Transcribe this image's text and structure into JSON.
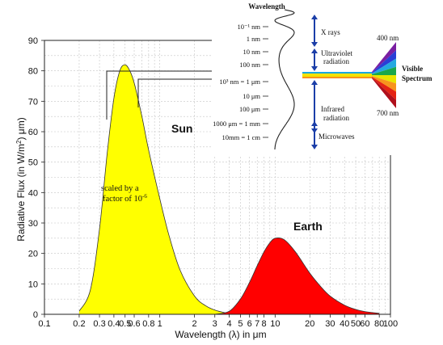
{
  "chart_data": {
    "type": "area",
    "xscale": "log",
    "xlim": [
      0.1,
      100
    ],
    "ylim": [
      0,
      90
    ],
    "grid": true,
    "xlabel": "Wavelength (λ) in μm",
    "ylabel_parts": [
      "Radiative Flux (in W/m",
      "2",
      ") μm)"
    ],
    "x_ticks": [
      "0.1",
      "0.2",
      "0.3",
      "0.4",
      "0.5",
      "0.6",
      "0.8",
      "1",
      "2",
      "3",
      "4",
      "5",
      "6",
      "7",
      "8",
      "10",
      "20",
      "30",
      "40",
      "50",
      "60",
      "80",
      "100"
    ],
    "y_ticks": [
      "0",
      "10",
      "20",
      "30",
      "40",
      "50",
      "60",
      "70",
      "80",
      "90"
    ],
    "series": [
      {
        "name": "Sun",
        "color": "#ffff00",
        "x": [
          0.2,
          0.25,
          0.3,
          0.35,
          0.4,
          0.45,
          0.5,
          0.55,
          0.6,
          0.7,
          0.8,
          1.0,
          1.2,
          1.5,
          2.0,
          2.5,
          3.0,
          3.5,
          4.0
        ],
        "y": [
          1.0,
          8.0,
          28.0,
          53.0,
          71.0,
          80.0,
          82.0,
          80.0,
          76.0,
          65.0,
          54.0,
          38.0,
          26.0,
          14.5,
          6.0,
          2.8,
          1.4,
          0.7,
          0.2
        ]
      },
      {
        "name": "Earth",
        "color": "#ff0000",
        "x": [
          3.0,
          4.0,
          5.0,
          6.0,
          7.0,
          8.0,
          9.0,
          10.0,
          12.0,
          15.0,
          20.0,
          25.0,
          30.0,
          40.0,
          50.0,
          60.0,
          80.0
        ],
        "y": [
          0.0,
          1.0,
          5.0,
          10.5,
          16.0,
          20.5,
          23.5,
          25.0,
          24.5,
          20.5,
          13.5,
          9.0,
          6.0,
          3.0,
          1.6,
          0.9,
          0.3
        ]
      }
    ],
    "annotations": {
      "sun_label": "Sun",
      "earth_label": "Earth",
      "scale_note_line1": "scaled by a",
      "scale_note_line2": "factor of 10",
      "scale_note_exp": "-6"
    }
  },
  "spectrum_inset": {
    "title": "Wavelength",
    "scale_labels": [
      "10⁻¹ nm",
      "1 nm",
      "10 nm",
      "100 nm",
      "10³ nm = 1 μm",
      "10 μm",
      "100 μm",
      "1000 μm = 1 mm",
      "10mm = 1 cm"
    ],
    "bands": [
      "X rays",
      "Ultraviolet",
      "radiation",
      "Infrared",
      "radiation",
      "Microwaves"
    ],
    "visible_top": "400 nm",
    "visible_bottom": "700 nm",
    "visible_label": [
      "Visible",
      "Spectrum"
    ],
    "colors": [
      "#7a1fa2",
      "#2a3fd6",
      "#25a9e0",
      "#1aa84b",
      "#e8e500",
      "#f7941d",
      "#e42313",
      "#b0101c"
    ]
  }
}
